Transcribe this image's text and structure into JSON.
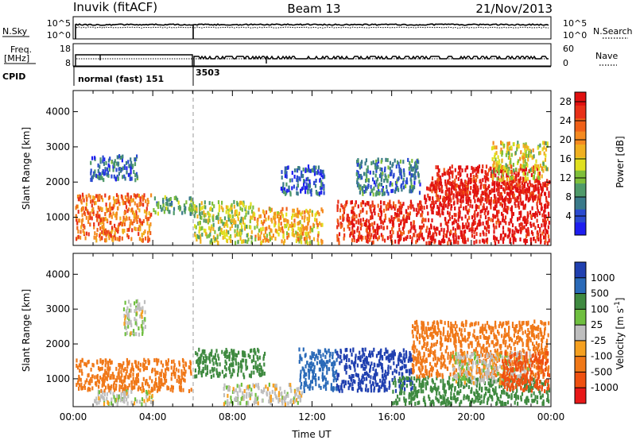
{
  "header": {
    "station": "Inuvik (fitACF)",
    "beam": "Beam 13",
    "date": "21/Nov/2013"
  },
  "top_panels": {
    "nsky_label": "N.Sky",
    "nsky_ticks": [
      "10^5",
      "10^0"
    ],
    "nsearch_label": "N.Search",
    "nsearch_ticks": [
      "10^5",
      "10^0"
    ],
    "freq_label_1": "Freq.",
    "freq_label_2": "[MHz]",
    "freq_ticks": [
      "18",
      "8"
    ],
    "nave_label": "Nave",
    "nave_ticks": [
      "60",
      "0"
    ],
    "cpid_label": "CPID",
    "cpid_segments": [
      {
        "start_hour": 0.0,
        "label": "normal (fast) 151"
      },
      {
        "start_hour": 6.05,
        "label": "3503"
      }
    ]
  },
  "chart_data": [
    {
      "type": "heatmap",
      "title": "",
      "xlabel": "",
      "ylabel": "Slant Range [km]",
      "xlim": [
        0,
        24
      ],
      "ylim": [
        200,
        4600
      ],
      "x_ticks": [
        "00:00",
        "04:00",
        "08:00",
        "12:00",
        "16:00",
        "20:00",
        "00:00"
      ],
      "y_ticks": [
        1000,
        2000,
        3000,
        4000
      ],
      "colorbar": {
        "label": "Power [dB]",
        "ticks": [
          4,
          8,
          12,
          16,
          20,
          24,
          28
        ],
        "range": [
          0,
          30
        ],
        "colors": [
          "#1e1ef0",
          "#2a4ad0",
          "#3a7a8a",
          "#4f9a6a",
          "#7fbf3a",
          "#e0e020",
          "#f0b020",
          "#f58a20",
          "#f06018",
          "#e83018",
          "#e01010"
        ]
      },
      "scatter_regions": [
        {
          "t0": 0.1,
          "t1": 3.9,
          "r0": 380,
          "r1": 1700,
          "value": 22
        },
        {
          "t0": 0.8,
          "t1": 3.2,
          "r0": 2100,
          "r1": 2800,
          "value": 6
        },
        {
          "t0": 4.0,
          "t1": 6.0,
          "r0": 1150,
          "r1": 1650,
          "value": 10
        },
        {
          "t0": 6.0,
          "t1": 9.0,
          "r0": 200,
          "r1": 1500,
          "value": 14
        },
        {
          "t0": 9.0,
          "t1": 12.5,
          "r0": 300,
          "r1": 1300,
          "value": 18
        },
        {
          "t0": 10.4,
          "t1": 12.6,
          "r0": 1700,
          "r1": 2500,
          "value": 5
        },
        {
          "t0": 13.2,
          "t1": 17.6,
          "r0": 300,
          "r1": 1500,
          "value": 27
        },
        {
          "t0": 14.2,
          "t1": 17.4,
          "r0": 1700,
          "r1": 2700,
          "value": 7
        },
        {
          "t0": 17.6,
          "t1": 24.0,
          "r0": 300,
          "r1": 2100,
          "value": 29
        },
        {
          "t0": 18.0,
          "t1": 23.5,
          "r0": 1500,
          "r1": 2500,
          "value": 28
        },
        {
          "t0": 21.0,
          "t1": 23.8,
          "r0": 2100,
          "r1": 3200,
          "value": 15
        }
      ]
    },
    {
      "type": "heatmap",
      "title": "",
      "xlabel": "Time UT",
      "ylabel": "Slant Range [km]",
      "xlim": [
        0,
        24
      ],
      "ylim": [
        200,
        4600
      ],
      "x_ticks": [
        "00:00",
        "04:00",
        "08:00",
        "12:00",
        "16:00",
        "20:00",
        "00:00"
      ],
      "y_ticks": [
        1000,
        2000,
        3000,
        4000
      ],
      "colorbar": {
        "label": "Velocity [m s^-1]",
        "ticks": [
          "1000",
          "500",
          "100",
          "25",
          "-25",
          "-100",
          "-500",
          "-1000"
        ],
        "colors": [
          "#2040b0",
          "#2a6ab8",
          "#3f8a40",
          "#6fbf40",
          "#bebebe",
          "#f5a020",
          "#f07818",
          "#ef5010",
          "#e81818"
        ]
      },
      "scatter_regions": [
        {
          "t0": 0.1,
          "t1": 5.9,
          "r0": 700,
          "r1": 1600,
          "value": -100
        },
        {
          "t0": 1.0,
          "t1": 4.0,
          "r0": 300,
          "r1": 700,
          "value": 0
        },
        {
          "t0": 2.5,
          "t1": 3.6,
          "r0": 2300,
          "r1": 3300,
          "value": 0
        },
        {
          "t0": 6.0,
          "t1": 9.6,
          "r0": 1100,
          "r1": 1900,
          "value": 100
        },
        {
          "t0": 7.5,
          "t1": 11.5,
          "r0": 250,
          "r1": 900,
          "value": 0
        },
        {
          "t0": 11.3,
          "t1": 13.2,
          "r0": 700,
          "r1": 1900,
          "value": 500
        },
        {
          "t0": 13.2,
          "t1": 17.0,
          "r0": 700,
          "r1": 1900,
          "value": 1000
        },
        {
          "t0": 16.0,
          "t1": 24.0,
          "r0": 300,
          "r1": 1100,
          "value": 100
        },
        {
          "t0": 17.0,
          "t1": 24.0,
          "r0": 1100,
          "r1": 2700,
          "value": -100
        },
        {
          "t0": 19.0,
          "t1": 23.0,
          "r0": 900,
          "r1": 1800,
          "value": 0
        },
        {
          "t0": 21.5,
          "t1": 24.0,
          "r0": 700,
          "r1": 1800,
          "value": -500
        }
      ]
    }
  ]
}
